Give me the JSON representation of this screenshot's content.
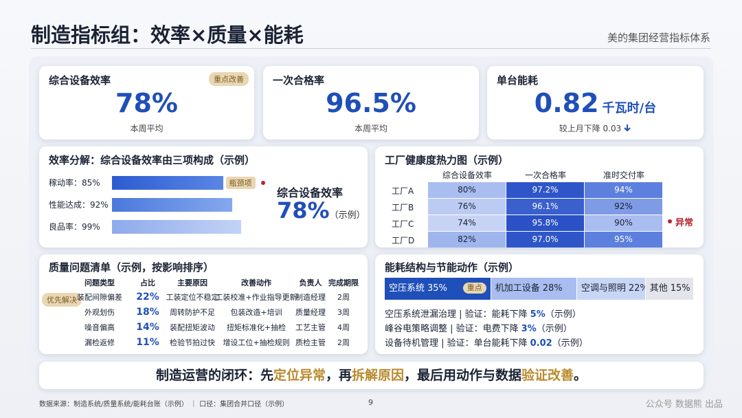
{
  "header": {
    "title": "制造指标组：效率×质量×能耗",
    "subtitle": "美的集团经营指标体系"
  },
  "kpis": [
    {
      "label": "综合设备效率",
      "badge": "重点改善",
      "value": "78%",
      "note": "本周平均"
    },
    {
      "label": "一次合格率",
      "value": "96.5%",
      "note": "本周平均"
    },
    {
      "label": "单台能耗",
      "value": "0.82",
      "unit": "千瓦时/台",
      "note": "较上月下降 0.03"
    }
  ],
  "efficiency": {
    "title": "效率分解：综合设备效率由三项构成（示例）",
    "bars": [
      {
        "name": "稼动率：",
        "value": 85,
        "value_label": "85%"
      },
      {
        "name": "性能达成：",
        "value": 92,
        "value_label": "92%"
      },
      {
        "name": "良品率：",
        "value": 99,
        "value_label": "99%"
      }
    ],
    "badge": "瓶颈项",
    "summary_label": "综合设备效率",
    "summary_value": "78%",
    "summary_note": "（示例）"
  },
  "heatmap": {
    "title": "工厂健康度热力图（示例）",
    "columns": [
      "综合设备效率",
      "一次合格率",
      "准时交付率"
    ],
    "rows": [
      {
        "name": "工厂A",
        "cells": [
          "80%",
          "97.2%",
          "94%"
        ]
      },
      {
        "name": "工厂B",
        "cells": [
          "76%",
          "96.1%",
          "92%"
        ]
      },
      {
        "name": "工厂C",
        "cells": [
          "74%",
          "95.8%",
          "90%"
        ]
      },
      {
        "name": "工厂D",
        "cells": [
          "82%",
          "97.0%",
          "95%"
        ]
      }
    ],
    "annotation": "异常"
  },
  "quality": {
    "title": "质量问题清单（示例，按影响排序）",
    "badge": "优先解决",
    "columns": [
      "问题类型",
      "占比",
      "主要原因",
      "改善动作",
      "负责人",
      "完成期限"
    ],
    "rows": [
      [
        "装配间隙偏差",
        "22%",
        "工装定位不稳定",
        "工装校准+作业指导更新",
        "制造经理",
        "2周"
      ],
      [
        "外观划伤",
        "18%",
        "周转防护不足",
        "包装改造+培训",
        "质量经理",
        "3周"
      ],
      [
        "噪音偏高",
        "14%",
        "装配扭矩波动",
        "扭矩标准化+抽检",
        "工艺主管",
        "4周"
      ],
      [
        "漏检返修",
        "11%",
        "检验节拍过快",
        "增设工位+抽检规则",
        "质检主管",
        "2周"
      ]
    ]
  },
  "energy": {
    "title": "能耗结构与节能动作（示例）",
    "segments": [
      {
        "name": "空压系统",
        "value": 35,
        "value_label": "35%",
        "badge": "重点"
      },
      {
        "name": "机加工设备",
        "value": 28,
        "value_label": "28%"
      },
      {
        "name": "空调与照明",
        "value": 22,
        "value_label": "22%"
      },
      {
        "name": "其他",
        "value": 15,
        "value_label": "15%"
      }
    ],
    "actions": [
      {
        "text": "空压系统泄漏治理 | 验证：能耗下降",
        "highlight": "5%",
        "suffix": "（示例）"
      },
      {
        "text": "峰谷电策略调整 | 验证：电费下降",
        "highlight": "3%",
        "suffix": "（示例）"
      },
      {
        "text": "设备待机管理 | 验证：单台能耗下降",
        "highlight": "0.02",
        "suffix": "（示例）"
      }
    ]
  },
  "banner": [
    {
      "text": "制造运营的闭环：先",
      "em": false
    },
    {
      "text": "定位异常",
      "em": true
    },
    {
      "text": "，再",
      "em": false
    },
    {
      "text": "拆解原因",
      "em": true
    },
    {
      "text": "，最后用动作与数据",
      "em": false
    },
    {
      "text": "验证改善",
      "em": true
    },
    {
      "text": "。",
      "em": false
    }
  ],
  "footer": {
    "source": "数据来源：制造系统/质量系统/能耗台账（示例） ｜ 口径：集团合并口径（示例）",
    "page": "9",
    "watermark": "公众号 数据熊 出品"
  }
}
